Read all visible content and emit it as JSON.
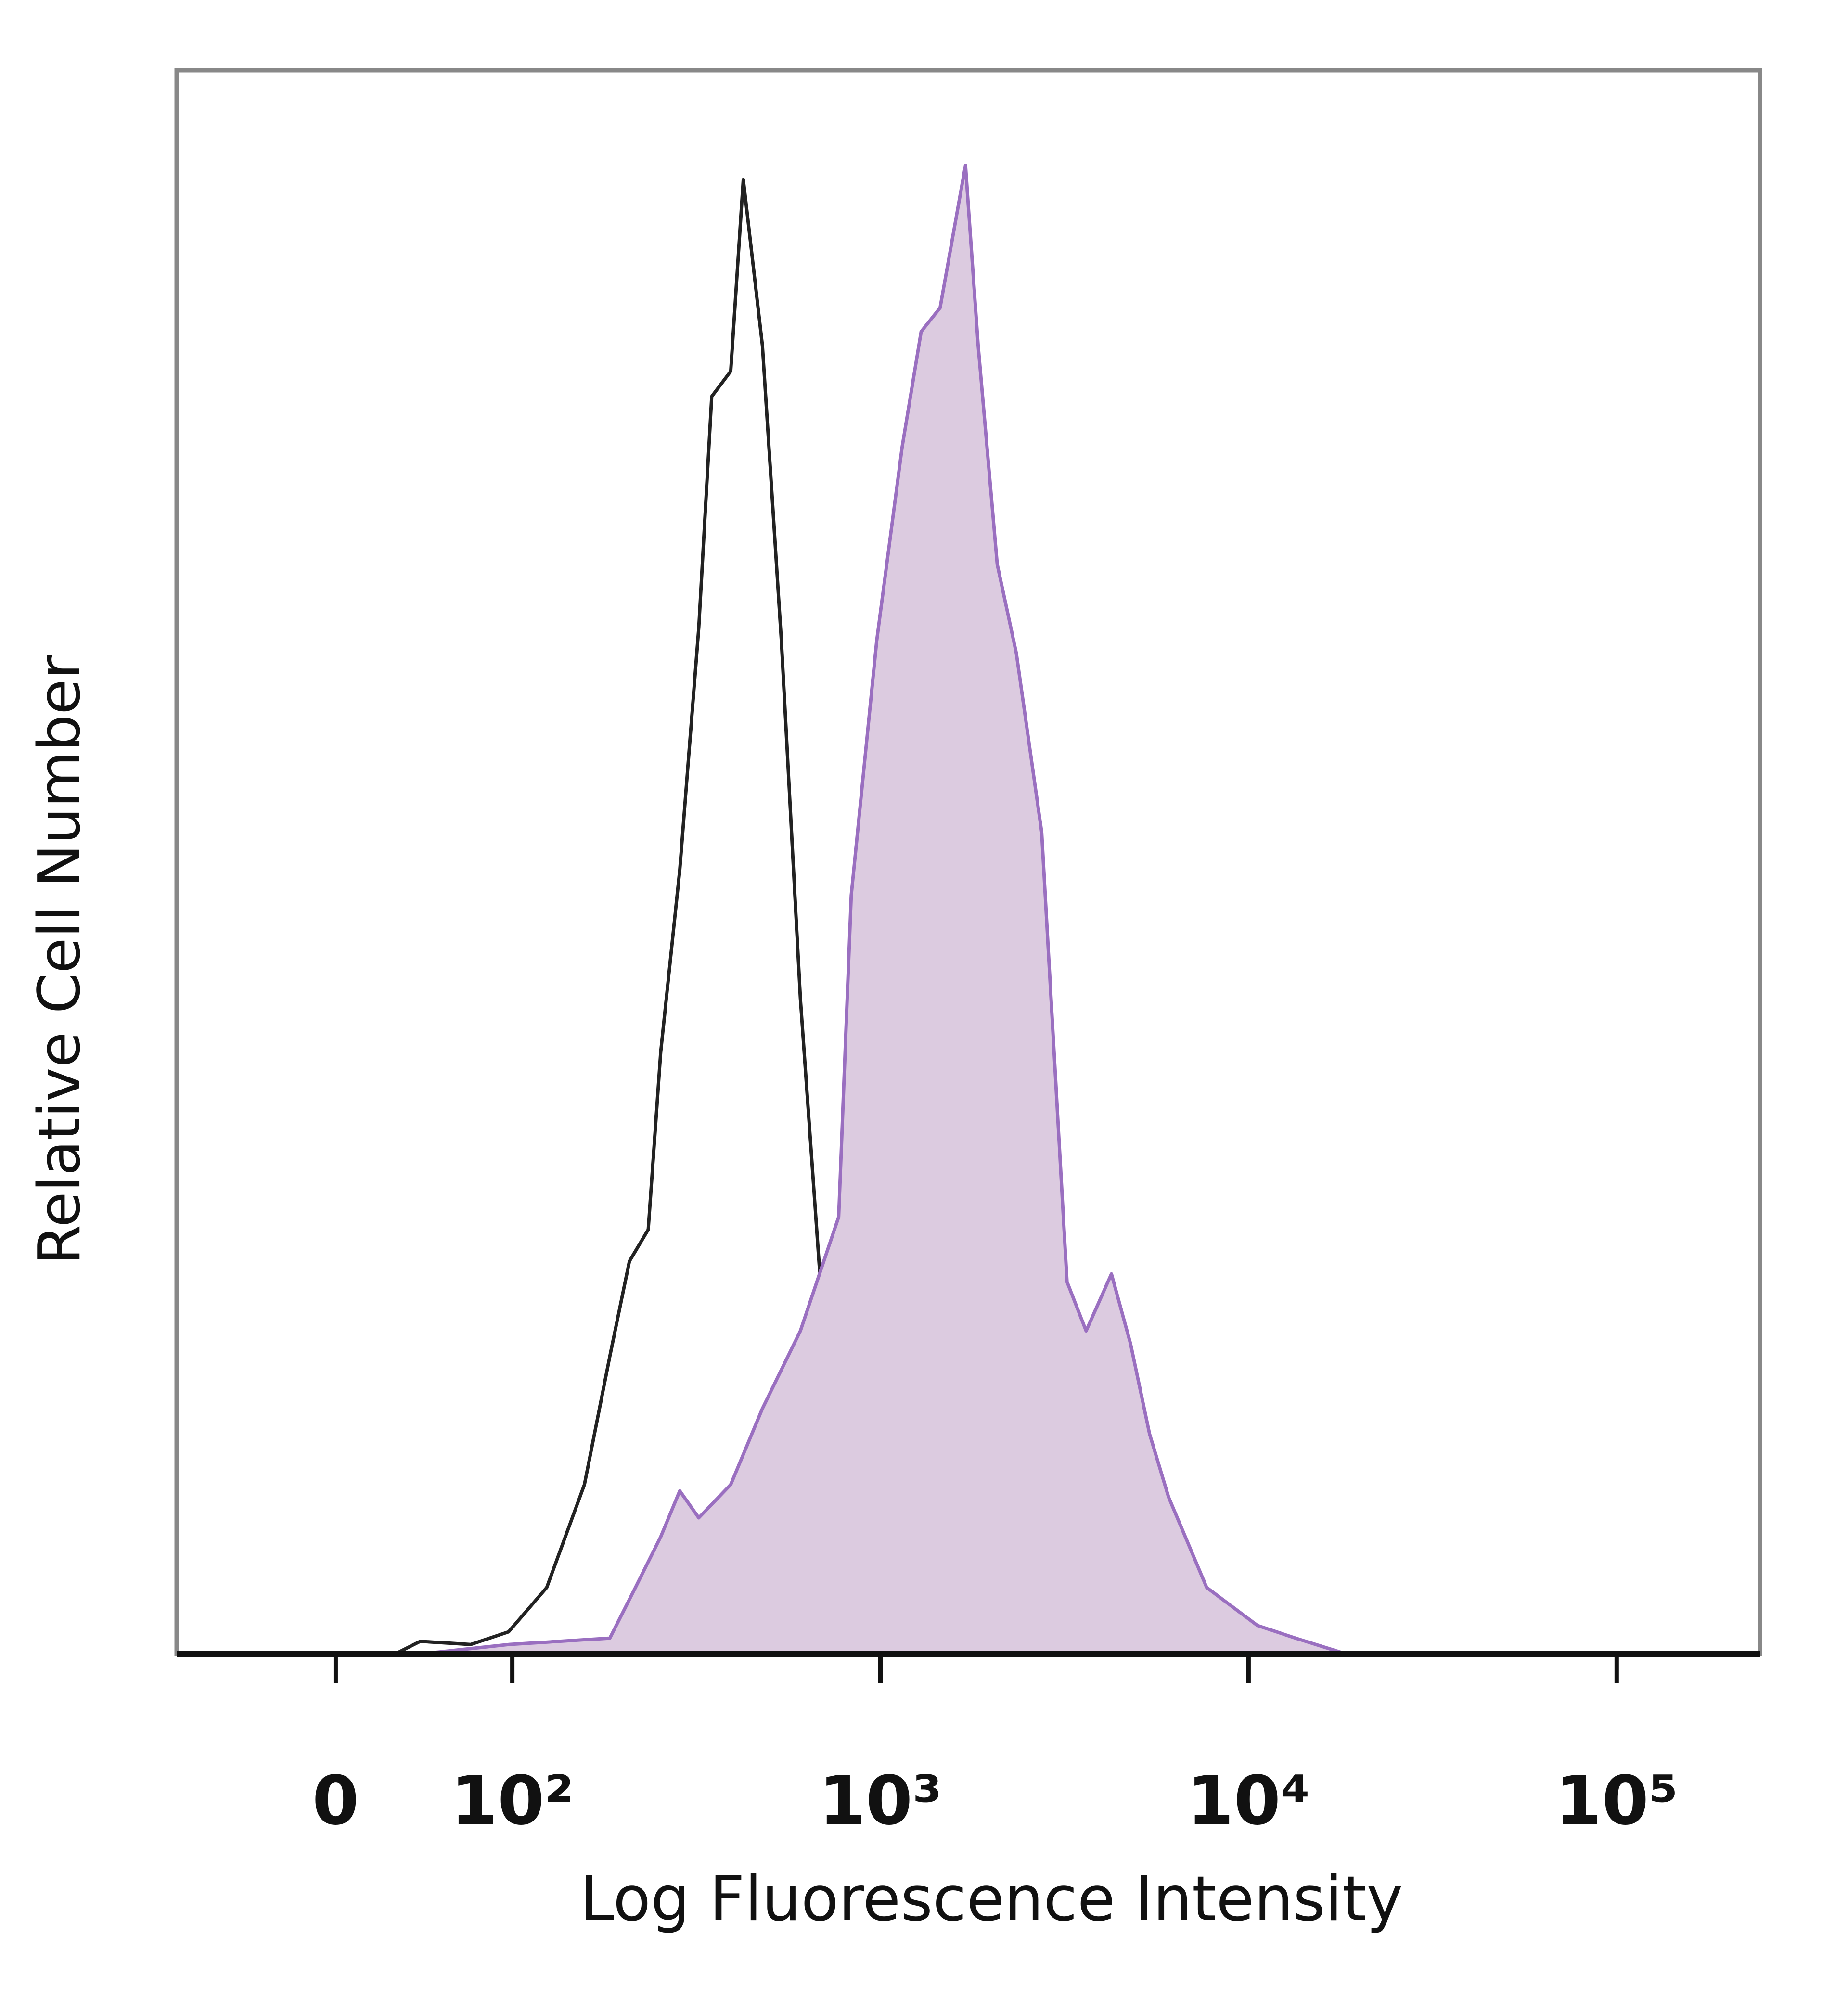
{
  "chart_data": {
    "type": "histogram-overlay",
    "xlabel": "Log Fluorescence Intensity",
    "ylabel": "Relative Cell Number",
    "xscale": "biexponential",
    "xlim": [
      -90,
      245000
    ],
    "ylim": [
      0,
      100
    ],
    "xticks": [
      0,
      {
        "value": 100,
        "label": "10²"
      },
      {
        "value": 1000,
        "label": "10³"
      },
      {
        "value": 10000,
        "label": "10⁴"
      },
      {
        "value": 100000,
        "label": "10⁵"
      }
    ],
    "series": [
      {
        "color": "#222222",
        "filled": false,
        "x": [
          33.6,
          47.9,
          76.4,
          97.9,
          124,
          157,
          184,
          208,
          234,
          253,
          285,
          321,
          348,
          392,
          424,
          478,
          538,
          606,
          683,
          770,
          902,
          1057,
          1452,
          2339
        ],
        "values": [
          0,
          0.8,
          0.6,
          1.4,
          4.2,
          10.7,
          18.8,
          24.8,
          26.8,
          38,
          49.5,
          64.8,
          79.4,
          81,
          93.1,
          82.6,
          64,
          41.4,
          24.3,
          12.3,
          4.2,
          1,
          0.2,
          0
        ]
      },
      {
        "color": "#9a6fc0",
        "fill": "#dccbe0",
        "filled": true,
        "x": [
          47.9,
          97.9,
          184,
          216,
          253,
          285,
          321,
          392,
          478,
          606,
          770,
          833,
          977,
          1145,
          1290,
          1452,
          1702,
          1843,
          2076,
          2339,
          2741,
          3213,
          3620,
          4242,
          4779,
          5383,
          6065,
          7696,
          10571,
          13416,
          18430
        ],
        "values": [
          0,
          0.6,
          1,
          4.2,
          7.4,
          10.3,
          8.6,
          10.7,
          15.5,
          20.4,
          27.6,
          47.9,
          64,
          76.2,
          83.5,
          85,
          94,
          82.6,
          68.8,
          63.2,
          51.9,
          23.5,
          20.4,
          24,
          19.6,
          13.9,
          9.9,
          4.2,
          1.8,
          1,
          0
        ]
      }
    ]
  }
}
